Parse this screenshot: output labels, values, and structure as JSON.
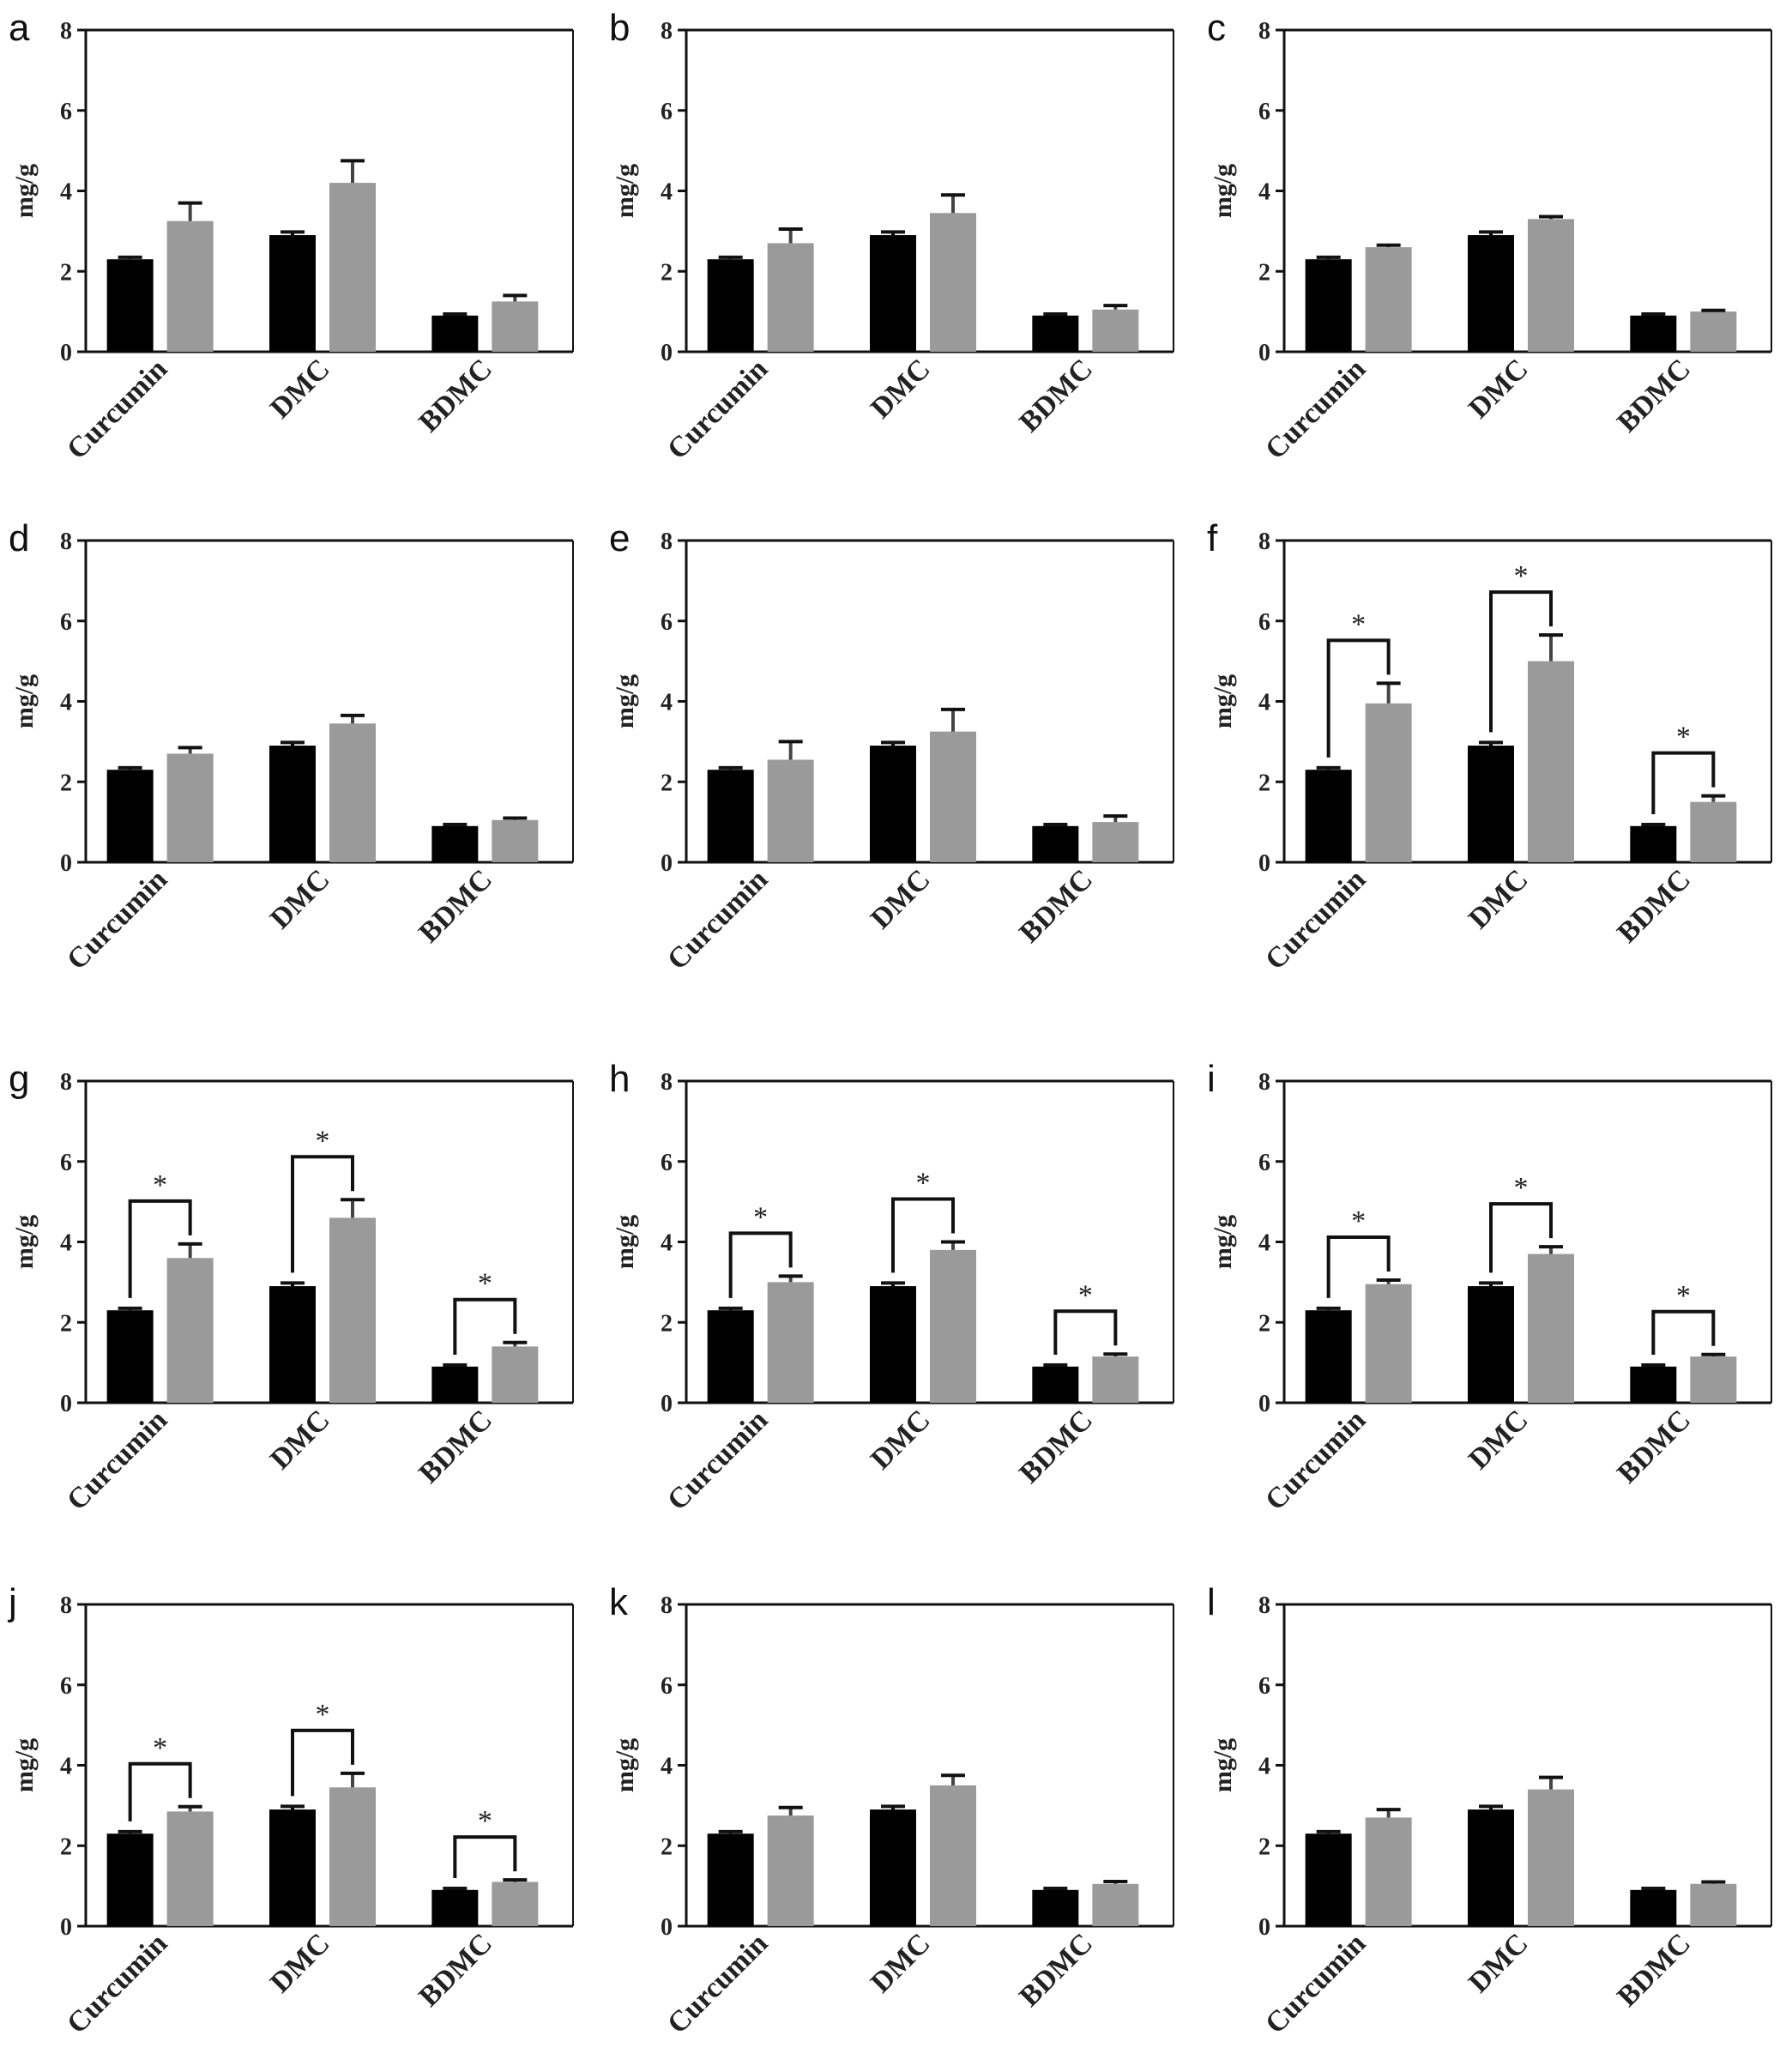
{
  "chart_data": [
    {
      "panel": "a",
      "type": "bar",
      "categories": [
        "Curcumin",
        "DMC",
        "BDMC"
      ],
      "ylabel": "mg/g",
      "ylim": [
        0,
        8
      ],
      "yticks": [
        0,
        2,
        4,
        6,
        8
      ],
      "series": [
        {
          "values": [
            2.3,
            2.9,
            0.9
          ],
          "errors": [
            0.05,
            0.08,
            0.04
          ]
        },
        {
          "values": [
            3.25,
            4.2,
            1.25
          ],
          "errors": [
            0.45,
            0.55,
            0.15
          ]
        }
      ],
      "significance": [],
      "colors": [
        "#000000",
        "#9a9a9a"
      ]
    },
    {
      "panel": "b",
      "type": "bar",
      "categories": [
        "Curcumin",
        "DMC",
        "BDMC"
      ],
      "ylabel": "mg/g",
      "ylim": [
        0,
        8
      ],
      "yticks": [
        0,
        2,
        4,
        6,
        8
      ],
      "series": [
        {
          "values": [
            2.3,
            2.9,
            0.9
          ],
          "errors": [
            0.05,
            0.08,
            0.04
          ]
        },
        {
          "values": [
            2.7,
            3.45,
            1.05
          ],
          "errors": [
            0.35,
            0.45,
            0.1
          ]
        }
      ],
      "significance": [],
      "colors": [
        "#000000",
        "#9a9a9a"
      ]
    },
    {
      "panel": "c",
      "type": "bar",
      "categories": [
        "Curcumin",
        "DMC",
        "BDMC"
      ],
      "ylabel": "mg/g",
      "ylim": [
        0,
        8
      ],
      "yticks": [
        0,
        2,
        4,
        6,
        8
      ],
      "series": [
        {
          "values": [
            2.3,
            2.9,
            0.9
          ],
          "errors": [
            0.05,
            0.08,
            0.04
          ]
        },
        {
          "values": [
            2.6,
            3.3,
            1.0
          ],
          "errors": [
            0.05,
            0.06,
            0.03
          ]
        }
      ],
      "significance": [],
      "colors": [
        "#000000",
        "#9a9a9a"
      ]
    },
    {
      "panel": "d",
      "type": "bar",
      "categories": [
        "Curcumin",
        "DMC",
        "BDMC"
      ],
      "ylabel": "mg/g",
      "ylim": [
        0,
        8
      ],
      "yticks": [
        0,
        2,
        4,
        6,
        8
      ],
      "series": [
        {
          "values": [
            2.3,
            2.9,
            0.9
          ],
          "errors": [
            0.05,
            0.08,
            0.04
          ]
        },
        {
          "values": [
            2.7,
            3.45,
            1.05
          ],
          "errors": [
            0.15,
            0.2,
            0.05
          ]
        }
      ],
      "significance": [],
      "colors": [
        "#000000",
        "#9a9a9a"
      ]
    },
    {
      "panel": "e",
      "type": "bar",
      "categories": [
        "Curcumin",
        "DMC",
        "BDMC"
      ],
      "ylabel": "mg/g",
      "ylim": [
        0,
        8
      ],
      "yticks": [
        0,
        2,
        4,
        6,
        8
      ],
      "series": [
        {
          "values": [
            2.3,
            2.9,
            0.9
          ],
          "errors": [
            0.05,
            0.08,
            0.04
          ]
        },
        {
          "values": [
            2.55,
            3.25,
            1.0
          ],
          "errors": [
            0.45,
            0.55,
            0.15
          ]
        }
      ],
      "significance": [],
      "colors": [
        "#000000",
        "#9a9a9a"
      ]
    },
    {
      "panel": "f",
      "type": "bar",
      "categories": [
        "Curcumin",
        "DMC",
        "BDMC"
      ],
      "ylabel": "mg/g",
      "ylim": [
        0,
        8
      ],
      "yticks": [
        0,
        2,
        4,
        6,
        8
      ],
      "series": [
        {
          "values": [
            2.3,
            2.9,
            0.9
          ],
          "errors": [
            0.05,
            0.08,
            0.04
          ]
        },
        {
          "values": [
            3.95,
            5.0,
            1.5
          ],
          "errors": [
            0.5,
            0.65,
            0.15
          ]
        }
      ],
      "significance": [
        "*",
        "*",
        "*"
      ],
      "colors": [
        "#000000",
        "#9a9a9a"
      ]
    },
    {
      "panel": "g",
      "type": "bar",
      "categories": [
        "Curcumin",
        "DMC",
        "BDMC"
      ],
      "ylabel": "mg/g",
      "ylim": [
        0,
        8
      ],
      "yticks": [
        0,
        2,
        4,
        6,
        8
      ],
      "series": [
        {
          "values": [
            2.3,
            2.9,
            0.9
          ],
          "errors": [
            0.05,
            0.08,
            0.04
          ]
        },
        {
          "values": [
            3.6,
            4.6,
            1.4
          ],
          "errors": [
            0.35,
            0.45,
            0.1
          ]
        }
      ],
      "significance": [
        "*",
        "*",
        "*"
      ],
      "colors": [
        "#000000",
        "#9a9a9a"
      ]
    },
    {
      "panel": "h",
      "type": "bar",
      "categories": [
        "Curcumin",
        "DMC",
        "BDMC"
      ],
      "ylabel": "mg/g",
      "ylim": [
        0,
        8
      ],
      "yticks": [
        0,
        2,
        4,
        6,
        8
      ],
      "series": [
        {
          "values": [
            2.3,
            2.9,
            0.9
          ],
          "errors": [
            0.05,
            0.08,
            0.04
          ]
        },
        {
          "values": [
            3.0,
            3.8,
            1.15
          ],
          "errors": [
            0.15,
            0.2,
            0.06
          ]
        }
      ],
      "significance": [
        "*",
        "*",
        "*"
      ],
      "colors": [
        "#000000",
        "#9a9a9a"
      ]
    },
    {
      "panel": "i",
      "type": "bar",
      "categories": [
        "Curcumin",
        "DMC",
        "BDMC"
      ],
      "ylabel": "mg/g",
      "ylim": [
        0,
        8
      ],
      "yticks": [
        0,
        2,
        4,
        6,
        8
      ],
      "series": [
        {
          "values": [
            2.3,
            2.9,
            0.9
          ],
          "errors": [
            0.05,
            0.08,
            0.04
          ]
        },
        {
          "values": [
            2.95,
            3.7,
            1.15
          ],
          "errors": [
            0.1,
            0.18,
            0.05
          ]
        }
      ],
      "significance": [
        "*",
        "*",
        "*"
      ],
      "colors": [
        "#000000",
        "#9a9a9a"
      ]
    },
    {
      "panel": "j",
      "type": "bar",
      "categories": [
        "Curcumin",
        "DMC",
        "BDMC"
      ],
      "ylabel": "mg/g",
      "ylim": [
        0,
        8
      ],
      "yticks": [
        0,
        2,
        4,
        6,
        8
      ],
      "series": [
        {
          "values": [
            2.3,
            2.9,
            0.9
          ],
          "errors": [
            0.05,
            0.08,
            0.04
          ]
        },
        {
          "values": [
            2.85,
            3.45,
            1.1
          ],
          "errors": [
            0.12,
            0.35,
            0.05
          ]
        }
      ],
      "significance": [
        "*",
        "*",
        "*"
      ],
      "colors": [
        "#000000",
        "#9a9a9a"
      ]
    },
    {
      "panel": "k",
      "type": "bar",
      "categories": [
        "Curcumin",
        "DMC",
        "BDMC"
      ],
      "ylabel": "mg/g",
      "ylim": [
        0,
        8
      ],
      "yticks": [
        0,
        2,
        4,
        6,
        8
      ],
      "series": [
        {
          "values": [
            2.3,
            2.9,
            0.9
          ],
          "errors": [
            0.05,
            0.08,
            0.04
          ]
        },
        {
          "values": [
            2.75,
            3.5,
            1.05
          ],
          "errors": [
            0.2,
            0.25,
            0.06
          ]
        }
      ],
      "significance": [],
      "colors": [
        "#000000",
        "#9a9a9a"
      ]
    },
    {
      "panel": "l",
      "type": "bar",
      "categories": [
        "Curcumin",
        "DMC",
        "BDMC"
      ],
      "ylabel": "mg/g",
      "ylim": [
        0,
        8
      ],
      "yticks": [
        0,
        2,
        4,
        6,
        8
      ],
      "series": [
        {
          "values": [
            2.3,
            2.9,
            0.9
          ],
          "errors": [
            0.05,
            0.08,
            0.04
          ]
        },
        {
          "values": [
            2.7,
            3.4,
            1.05
          ],
          "errors": [
            0.2,
            0.3,
            0.05
          ]
        }
      ],
      "significance": [],
      "colors": [
        "#000000",
        "#9a9a9a"
      ]
    }
  ]
}
